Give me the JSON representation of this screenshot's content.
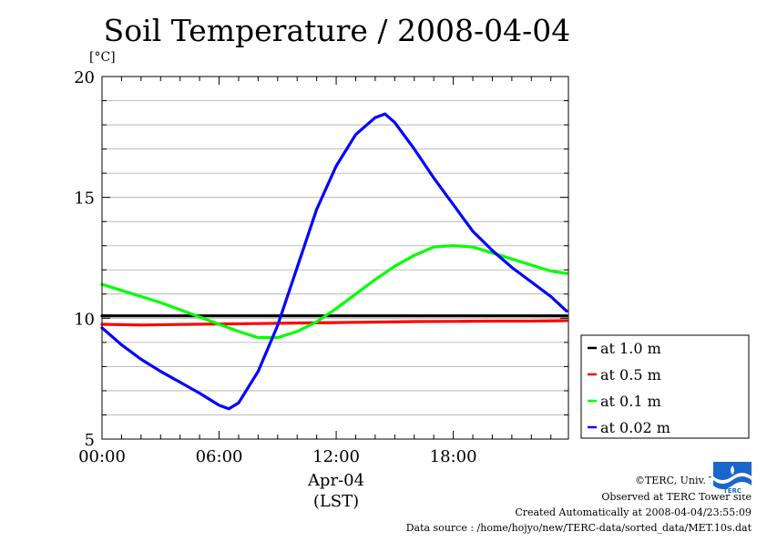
{
  "page": {
    "title": "Soil Temperature / 2008-04-04",
    "unit_label": "[°C]",
    "date_label": "Apr-04",
    "time_zone_label": "(LST)"
  },
  "credits": {
    "copyright": "©TERC, Univ. Tsukuba",
    "observed": "Observed at TERC Tower site",
    "created": "Created Automatically at 2008-04-04/23:55:09",
    "source": "Data source : /home/hojyo/new/TERC-data/sorted_data/MET.10s.dat"
  },
  "logo": {
    "name": "terc-logo-icon",
    "text": "TERC",
    "color": "#1a66cc"
  },
  "chart_data": {
    "type": "line",
    "title": "Soil Temperature / 2008-04-04",
    "ylabel": "[°C]",
    "xlabel": "Apr-04 (LST)",
    "xlim": [
      0,
      23.9
    ],
    "ylim": [
      5,
      20
    ],
    "y_ticks": [
      5,
      10,
      15,
      20
    ],
    "y_tick_labels": [
      "5",
      "10",
      "15",
      "20"
    ],
    "x_ticks": [
      0,
      6,
      12,
      18
    ],
    "x_tick_labels": [
      "00:00",
      "06:00",
      "12:00",
      "18:00"
    ],
    "grid": "horizontal",
    "legend_position": "bottom-right outside",
    "series": [
      {
        "name": "at 1.0 m",
        "color": "#000000",
        "x": [
          0,
          4,
          8,
          12,
          16,
          20,
          23.8
        ],
        "y": [
          10.1,
          10.1,
          10.1,
          10.1,
          10.1,
          10.1,
          10.1
        ]
      },
      {
        "name": "at 0.5 m",
        "color": "#ff0000",
        "x": [
          0,
          2,
          4,
          6,
          8,
          10,
          12,
          14,
          16,
          18,
          20,
          22,
          23.8
        ],
        "y": [
          9.75,
          9.72,
          9.74,
          9.76,
          9.78,
          9.8,
          9.82,
          9.84,
          9.86,
          9.87,
          9.88,
          9.88,
          9.9
        ]
      },
      {
        "name": "at 0.1 m",
        "color": "#00ff00",
        "x": [
          0,
          1,
          2,
          3,
          4,
          5,
          6,
          7,
          8,
          9,
          10,
          11,
          12,
          13,
          14,
          15,
          16,
          17,
          18,
          19,
          20,
          21,
          22,
          23,
          23.8
        ],
        "y": [
          11.4,
          11.15,
          10.9,
          10.65,
          10.35,
          10.05,
          9.75,
          9.45,
          9.2,
          9.2,
          9.45,
          9.85,
          10.4,
          11.0,
          11.6,
          12.15,
          12.6,
          12.95,
          13.0,
          12.95,
          12.7,
          12.45,
          12.2,
          11.95,
          11.85
        ]
      },
      {
        "name": "at 0.02 m",
        "color": "#0000ff",
        "x": [
          0,
          1,
          2,
          3,
          4,
          5,
          6,
          6.5,
          7,
          8,
          9,
          10,
          11,
          12,
          13,
          14,
          14.5,
          15,
          16,
          17,
          18,
          19,
          20,
          21,
          22,
          23,
          23.8
        ],
        "y": [
          9.6,
          8.9,
          8.3,
          7.8,
          7.35,
          6.9,
          6.4,
          6.25,
          6.5,
          7.8,
          9.7,
          12.1,
          14.5,
          16.3,
          17.6,
          18.3,
          18.45,
          18.1,
          17.0,
          15.8,
          14.7,
          13.6,
          12.8,
          12.1,
          11.5,
          10.9,
          10.3
        ]
      }
    ]
  }
}
